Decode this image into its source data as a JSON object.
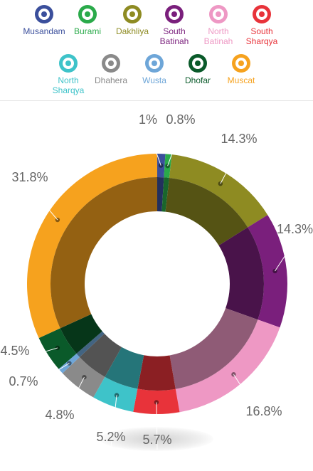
{
  "chart_data": {
    "type": "pie",
    "style": "donut",
    "slices": [
      {
        "name": "Musandam",
        "value": 1.0,
        "label": "1%",
        "color": "#3b4f9c"
      },
      {
        "name": "Burami",
        "value": 0.8,
        "label": "0.8%",
        "color": "#2aaa4a"
      },
      {
        "name": "Dakhliya",
        "value": 14.3,
        "label": "14.3%",
        "color": "#8e8b22"
      },
      {
        "name": "South Batinah",
        "value": 14.3,
        "label": "14.3%",
        "color": "#7a1f7c"
      },
      {
        "name": "North Batinah",
        "value": 16.8,
        "label": "16.8%",
        "color": "#ee98c4"
      },
      {
        "name": "South Sharqya",
        "value": 5.7,
        "label": "5.7%",
        "color": "#e8333a"
      },
      {
        "name": "North Sharqya",
        "value": 5.2,
        "label": "5.2%",
        "color": "#3ec3c9"
      },
      {
        "name": "Dhahera",
        "value": 4.8,
        "label": "4.8%",
        "color": "#8a8a8a"
      },
      {
        "name": "Wusta",
        "value": 0.7,
        "label": "0.7%",
        "color": "#6ea6d8"
      },
      {
        "name": "Dhofar",
        "value": 4.5,
        "label": "4.5%",
        "color": "#0a5a2a"
      },
      {
        "name": "Muscat",
        "value": 31.8,
        "label": "31.8%",
        "color": "#f6a21e"
      }
    ],
    "legend_position": "top"
  },
  "legend": {
    "row1": [
      {
        "label": "Musandam",
        "color": "#3b4f9c"
      },
      {
        "label": "Burami",
        "color": "#2aaa4a"
      },
      {
        "label": "Dakhliya",
        "color": "#8e8b22"
      },
      {
        "label": "South Batinah",
        "color": "#7a1f7c"
      },
      {
        "label": "North Batinah",
        "color": "#ee98c4"
      },
      {
        "label": "South Sharqya",
        "color": "#e8333a"
      }
    ],
    "row2": [
      {
        "label": "North Sharqya",
        "color": "#3ec3c9"
      },
      {
        "label": "Dhahera",
        "color": "#8a8a8a"
      },
      {
        "label": "Wusta",
        "color": "#6ea6d8"
      },
      {
        "label": "Dhofar",
        "color": "#0a5a2a"
      },
      {
        "label": "Muscat",
        "color": "#f6a21e"
      }
    ]
  }
}
